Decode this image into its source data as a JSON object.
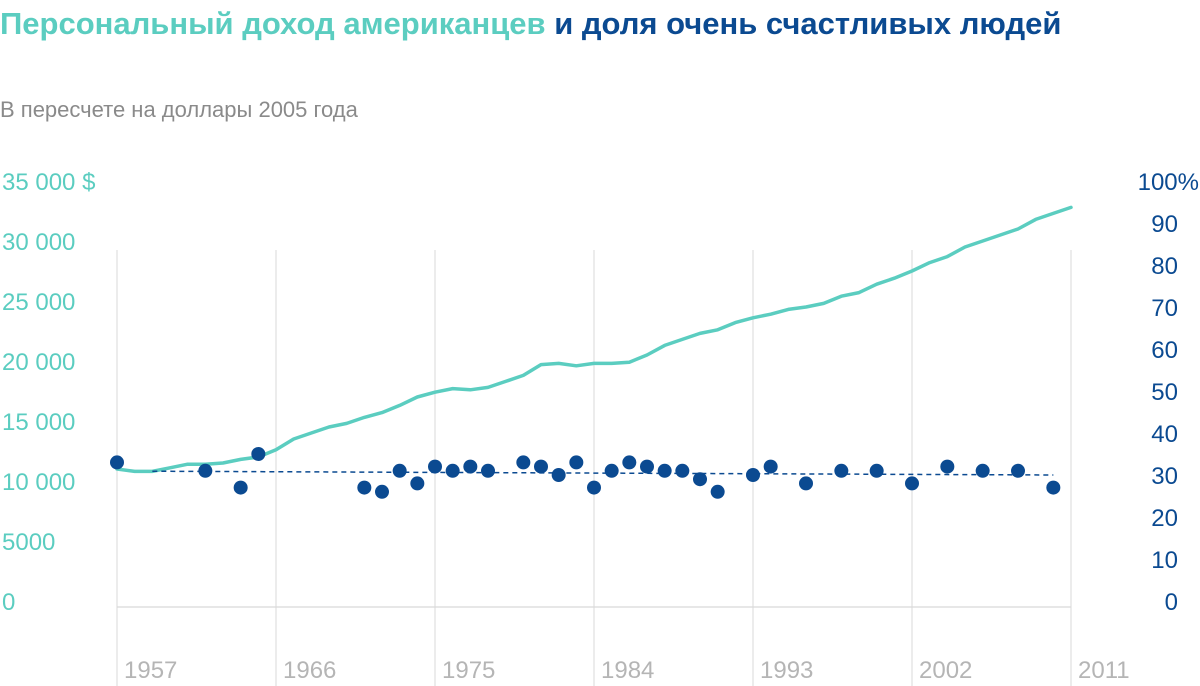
{
  "title": {
    "part1": "Персональный доход американцев",
    "part2": " и доля очень счастливых людей"
  },
  "subtitle": "В пересчете на доллары 2005 года",
  "colors": {
    "income": "#5bcdc0",
    "happy": "#0b4a91",
    "grid": "#d9d9d9",
    "xlabel": "#b5b5b5"
  },
  "chart_data": {
    "type": "line",
    "title": "Персональный доход американцев и доля очень счастливых людей",
    "subtitle": "В пересчете на доллары 2005 года",
    "xlim": [
      1957,
      2011
    ],
    "x_ticks": [
      1957,
      1966,
      1975,
      1984,
      1993,
      2002,
      2011
    ],
    "x_tick_labels": [
      "1957",
      "1966",
      "1975",
      "1984",
      "1993",
      "2002",
      "2011"
    ],
    "y_left": {
      "ylim": [
        0,
        35000
      ],
      "ticks": [
        0,
        5000,
        10000,
        15000,
        20000,
        25000,
        30000,
        35000
      ],
      "tick_labels": [
        "0",
        "5000",
        "10 000",
        "15 000",
        "20 000",
        "25 000",
        "30 000",
        "35 000 $"
      ]
    },
    "y_right": {
      "ylim": [
        0,
        100
      ],
      "ticks": [
        0,
        10,
        20,
        30,
        40,
        50,
        60,
        70,
        80,
        90,
        100
      ],
      "tick_labels": [
        "0",
        "10",
        "20",
        "30",
        "40",
        "50",
        "60",
        "70",
        "80",
        "90",
        "100%"
      ]
    },
    "series": [
      {
        "name": "Персональный доход",
        "axis": "left",
        "type": "line",
        "x": [
          1957,
          1958,
          1959,
          1960,
          1961,
          1962,
          1963,
          1964,
          1965,
          1966,
          1967,
          1968,
          1969,
          1970,
          1971,
          1972,
          1973,
          1974,
          1975,
          1976,
          1977,
          1978,
          1979,
          1980,
          1981,
          1982,
          1983,
          1984,
          1985,
          1986,
          1987,
          1988,
          1989,
          1990,
          1991,
          1992,
          1993,
          1994,
          1995,
          1996,
          1997,
          1998,
          1999,
          2000,
          2001,
          2002,
          2003,
          2004,
          2005,
          2006,
          2007,
          2008,
          2009,
          2010,
          2011
        ],
        "values": [
          11000,
          10800,
          10800,
          11100,
          11400,
          11400,
          11500,
          11800,
          12000,
          12600,
          13500,
          14000,
          14500,
          14800,
          15300,
          15700,
          16300,
          17000,
          17400,
          17700,
          17600,
          17800,
          18300,
          18800,
          19700,
          19800,
          19600,
          19800,
          19800,
          19900,
          20500,
          21300,
          21800,
          22300,
          22600,
          23200,
          23600,
          23900,
          24300,
          24500,
          24800,
          25400,
          25700,
          26400,
          26900,
          27500,
          28200,
          28700,
          29500,
          30000,
          30500,
          31000,
          31800,
          32300,
          32800
        ]
      },
      {
        "name": "Доля очень счастливых людей",
        "axis": "right",
        "type": "scatter",
        "x": [
          1957,
          1962,
          1964,
          1965,
          1971,
          1972,
          1973,
          1974,
          1975,
          1976,
          1977,
          1978,
          1980,
          1981,
          1982,
          1983,
          1984,
          1985,
          1986,
          1987,
          1988,
          1989,
          1990,
          1991,
          1993,
          1994,
          1996,
          1998,
          2000,
          2002,
          2004,
          2006,
          2008,
          2010
        ],
        "values": [
          33,
          31,
          27,
          35,
          27,
          26,
          31,
          28,
          32,
          31,
          32,
          31,
          33,
          32,
          30,
          33,
          27,
          31,
          33,
          32,
          31,
          31,
          29,
          26,
          30,
          32,
          28,
          31,
          31,
          28,
          32,
          31,
          31,
          27
        ]
      },
      {
        "name": "Тренд",
        "axis": "right",
        "type": "trend",
        "x": [
          1959,
          2010
        ],
        "values": [
          30.9,
          30.0
        ]
      }
    ]
  }
}
